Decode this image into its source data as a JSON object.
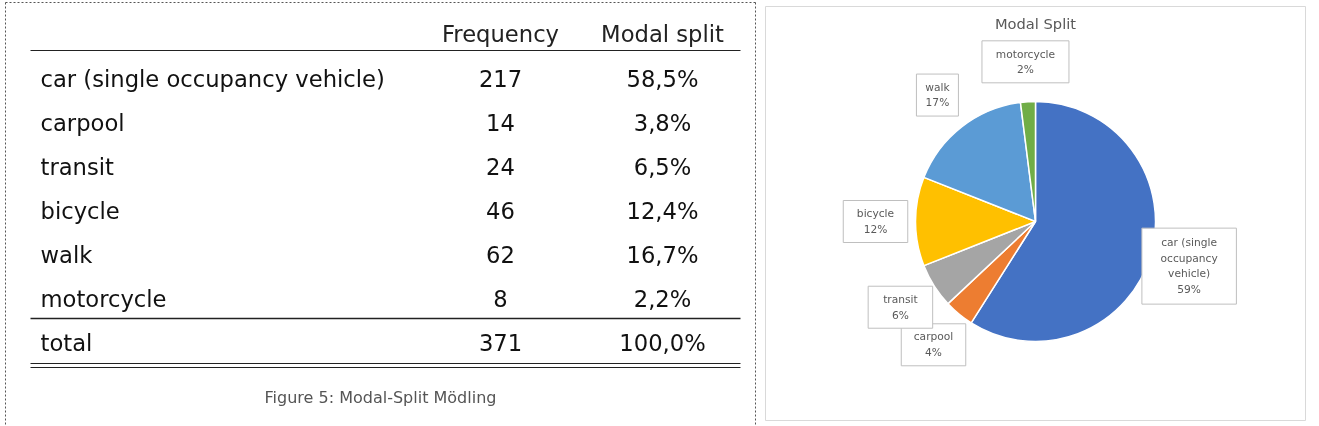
{
  "chart_data": [
    {
      "type": "other",
      "categories": [
        "car (single occupancy vehicle)",
        "carpool",
        "transit",
        "bicycle",
        "walk",
        "motorcycle",
        "total"
      ],
      "annotations": [
        "Frequency",
        "Modal split",
        "217",
        "58,5%",
        "14",
        "3,8%",
        "24",
        "6,5%",
        "46",
        "12,4%",
        "62",
        "16,7%",
        "8",
        "2,2%",
        "371",
        "100,0%",
        "Figure 5: Modal-Split Mödling"
      ]
    },
    {
      "type": "pie",
      "title": "Modal Split",
      "categories": [
        "car (single occupancy vehicle)",
        "carpool",
        "transit",
        "bicycle",
        "walk",
        "motorcycle"
      ],
      "values": [
        59,
        4,
        6,
        12,
        17,
        2
      ],
      "value_labels": [
        "59%",
        "4%",
        "6%",
        "12%",
        "17%",
        "2%"
      ],
      "colors": [
        "#4472c4",
        "#ed7d31",
        "#a5a5a5",
        "#ffc000",
        "#5b9bd5",
        "#70ad47"
      ]
    }
  ]
}
